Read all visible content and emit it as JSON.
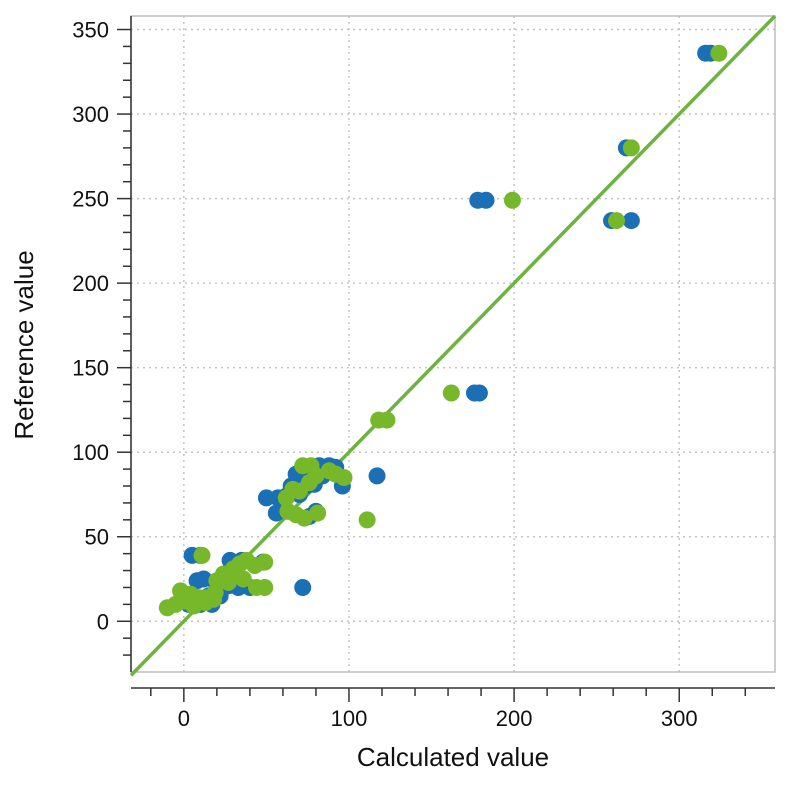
{
  "chart_data": {
    "type": "scatter",
    "title": "",
    "xlabel": "Calculated value",
    "ylabel": "Reference value",
    "xlim": [
      -32,
      358
    ],
    "ylim": [
      -30,
      358
    ],
    "x_ticks": [
      0,
      100,
      200,
      300
    ],
    "y_ticks": [
      0,
      50,
      100,
      150,
      200,
      250,
      300,
      350
    ],
    "x_tick_labels": [
      "0",
      "100",
      "200",
      "300"
    ],
    "y_tick_labels": [
      "0",
      "50",
      "100",
      "150",
      "200",
      "250",
      "300",
      "350"
    ],
    "grid": true,
    "legend": "none",
    "reference_line": {
      "x": [
        -32,
        358
      ],
      "y": [
        -32,
        358
      ],
      "color": "#6db33f"
    },
    "series": [
      {
        "color": "#1a6fb5",
        "points": [
          [
            316,
            336
          ],
          [
            319,
            336
          ],
          [
            268,
            280
          ],
          [
            259,
            237
          ],
          [
            271,
            237
          ],
          [
            178,
            249
          ],
          [
            183,
            249
          ],
          [
            176,
            135
          ],
          [
            179,
            135
          ],
          [
            117,
            86
          ],
          [
            72,
            20
          ],
          [
            50,
            73
          ],
          [
            57,
            73
          ],
          [
            56,
            64
          ],
          [
            68,
            87
          ],
          [
            73,
            86
          ],
          [
            77,
            88
          ],
          [
            82,
            92
          ],
          [
            88,
            92
          ],
          [
            92,
            91
          ],
          [
            65,
            80
          ],
          [
            74,
            80
          ],
          [
            79,
            81
          ],
          [
            84,
            86
          ],
          [
            70,
            75
          ],
          [
            62,
            74
          ],
          [
            76,
            62
          ],
          [
            80,
            65
          ],
          [
            96,
            80
          ],
          [
            5,
            39
          ],
          [
            10,
            39
          ],
          [
            8,
            24
          ],
          [
            12,
            25
          ],
          [
            28,
            36
          ],
          [
            35,
            36
          ],
          [
            48,
            35
          ],
          [
            20,
            20
          ],
          [
            27,
            21
          ],
          [
            33,
            20
          ],
          [
            40,
            20
          ],
          [
            5,
            15
          ],
          [
            15,
            15
          ],
          [
            22,
            15
          ],
          [
            3,
            10
          ],
          [
            10,
            10
          ],
          [
            17,
            10
          ],
          [
            0,
            12
          ]
        ]
      },
      {
        "color": "#76b82a",
        "points": [
          [
            324,
            336
          ],
          [
            271,
            280
          ],
          [
            262,
            237
          ],
          [
            199,
            249
          ],
          [
            162,
            135
          ],
          [
            118,
            119
          ],
          [
            123,
            119
          ],
          [
            111,
            60
          ],
          [
            72,
            92
          ],
          [
            77,
            92
          ],
          [
            88,
            89
          ],
          [
            92,
            87
          ],
          [
            97,
            85
          ],
          [
            62,
            73
          ],
          [
            66,
            78
          ],
          [
            70,
            77
          ],
          [
            76,
            82
          ],
          [
            80,
            86
          ],
          [
            63,
            65
          ],
          [
            68,
            63
          ],
          [
            73,
            61
          ],
          [
            81,
            64
          ],
          [
            11,
            39
          ],
          [
            24,
            28
          ],
          [
            30,
            31
          ],
          [
            34,
            34
          ],
          [
            38,
            36
          ],
          [
            43,
            33
          ],
          [
            49,
            35
          ],
          [
            20,
            24
          ],
          [
            27,
            23
          ],
          [
            36,
            25
          ],
          [
            44,
            20
          ],
          [
            49,
            20
          ],
          [
            -2,
            18
          ],
          [
            4,
            16
          ],
          [
            9,
            14
          ],
          [
            14,
            14
          ],
          [
            19,
            17
          ],
          [
            -10,
            8
          ],
          [
            -5,
            10
          ],
          [
            0,
            12
          ],
          [
            6,
            9
          ],
          [
            13,
            11
          ],
          [
            18,
            13
          ]
        ]
      }
    ]
  }
}
